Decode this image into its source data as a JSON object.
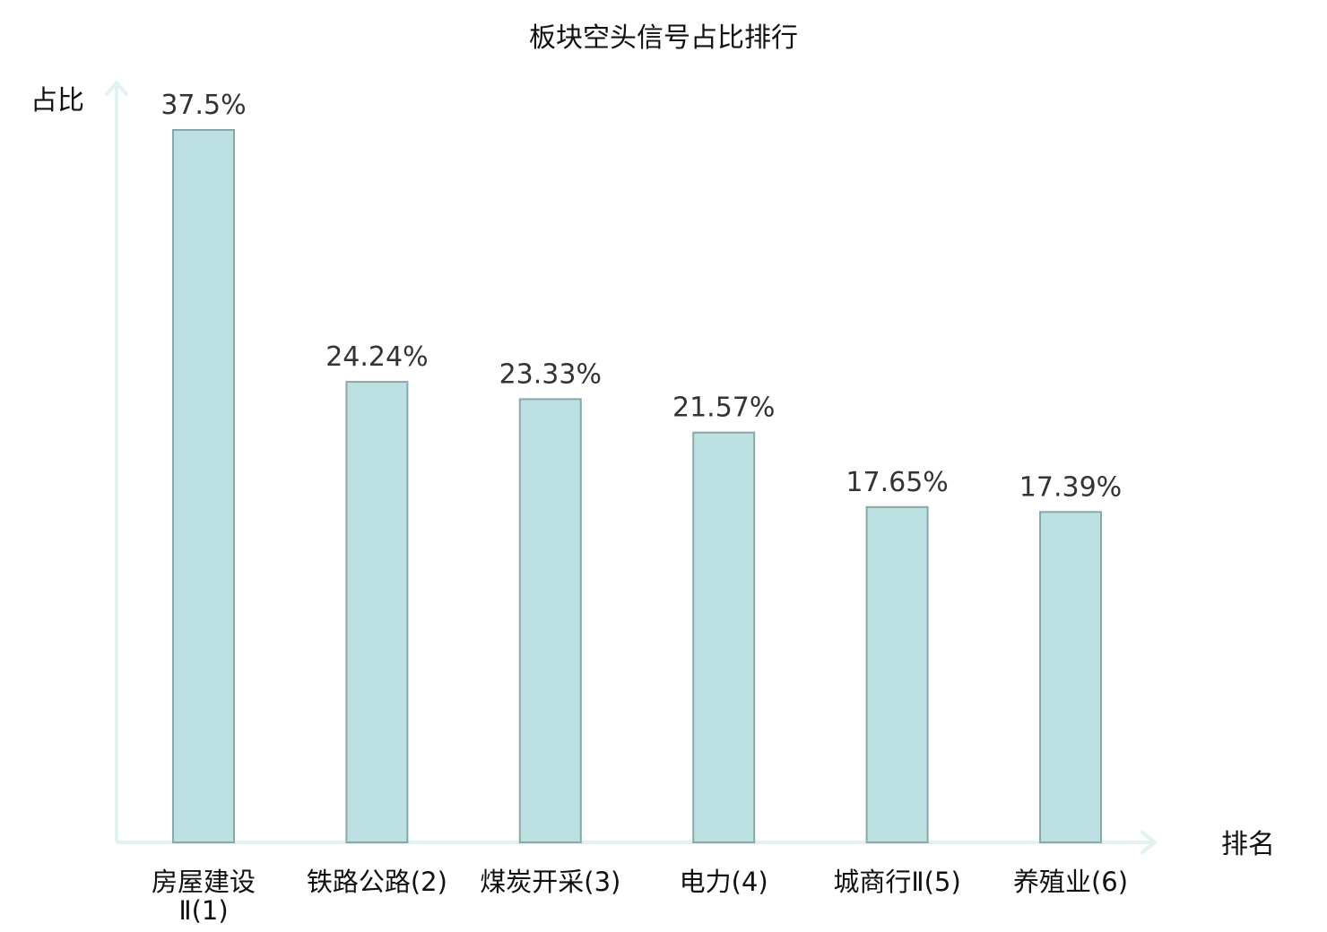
{
  "chart_data": {
    "type": "bar",
    "title": "板块空头信号占比排行",
    "ylabel": "占比",
    "xlabel": "排名",
    "ylim": [
      0,
      40
    ],
    "categories": [
      "房屋建设Ⅱ(1)",
      "铁路公路(2)",
      "煤炭开采(3)",
      "电力(4)",
      "城商行Ⅱ(5)",
      "养殖业(6)"
    ],
    "values": [
      37.5,
      24.24,
      23.33,
      21.57,
      17.65,
      17.39
    ],
    "value_labels": [
      "37.5%",
      "24.24%",
      "23.33%",
      "21.57%",
      "17.65%",
      "17.39%"
    ],
    "tick_colors": [
      "#111111",
      "#111111",
      "#111111",
      "#111111",
      "#111111",
      "#e00000"
    ],
    "grid": false,
    "legend": "none",
    "colors": {
      "bar_fill": "#bde0e2",
      "bar_stroke": "#88a8aa",
      "axis": "#e2f2f0",
      "highlight": "#e00000"
    }
  }
}
